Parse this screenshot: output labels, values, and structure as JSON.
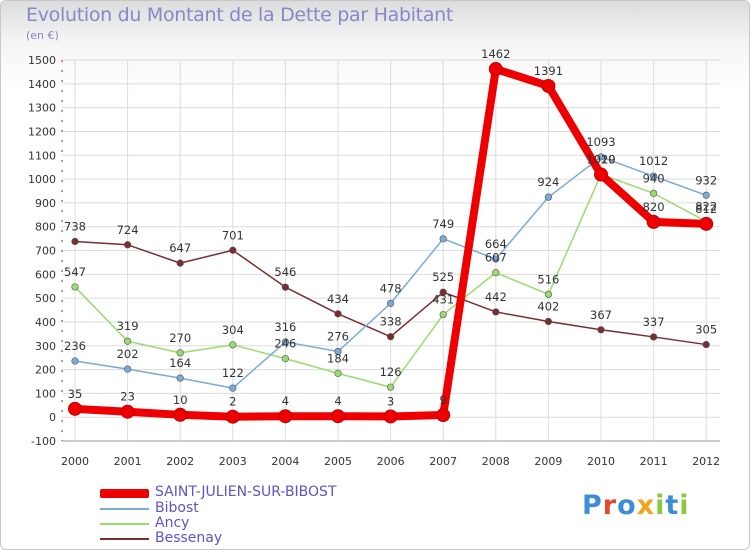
{
  "title": "Evolution du Montant de la Dette par Habitant",
  "unit_label": "(en €)",
  "logo": {
    "text": "Proxiti",
    "colors": [
      "#3a8fd8",
      "#e8452c",
      "#3a8fd8",
      "#f2a51a",
      "#8dc63f",
      "#3a8fd8",
      "#8dc63f"
    ]
  },
  "chart_data": {
    "type": "line",
    "title": "Evolution du Montant de la Dette par Habitant",
    "ylabel": "(en €)",
    "xlabel": "",
    "ylim": [
      -100,
      1500
    ],
    "yticks": [
      -100,
      0,
      100,
      200,
      300,
      400,
      500,
      600,
      700,
      800,
      900,
      1000,
      1100,
      1200,
      1300,
      1400,
      1500
    ],
    "grid": true,
    "legend_position": "bottom-left",
    "categories": [
      "2000",
      "2001",
      "2002",
      "2003",
      "2004",
      "2005",
      "2006",
      "2007",
      "2008",
      "2009",
      "2010",
      "2011",
      "2012"
    ],
    "series": [
      {
        "name": "SAINT-JULIEN-SUR-BIBOST",
        "color": "#ee0000",
        "values": [
          35,
          23,
          10,
          2,
          4,
          4,
          3,
          9,
          1462,
          1391,
          1019,
          820,
          812
        ],
        "labels": [
          "35",
          "23",
          "10",
          "2",
          "4",
          "4",
          "3",
          "9",
          "1462",
          "1391",
          "1019",
          "820",
          "812"
        ]
      },
      {
        "name": "Bibost",
        "color": "#7aaad6",
        "values": [
          236,
          202,
          164,
          122,
          316,
          276,
          478,
          749,
          664,
          924,
          1093,
          1012,
          932
        ],
        "labels": [
          "236",
          "202",
          "164",
          "122",
          "316",
          "276",
          "478",
          "749",
          "664",
          "924",
          "1093",
          "1012",
          "932"
        ]
      },
      {
        "name": "Ancy",
        "color": "#9adb6e",
        "values": [
          547,
          319,
          270,
          304,
          246,
          184,
          126,
          431,
          607,
          516,
          1020,
          940,
          822
        ],
        "labels": [
          "547",
          "319",
          "270",
          "304",
          "246",
          "184",
          "126",
          "431",
          "607",
          "516",
          "1020",
          "940",
          "822"
        ]
      },
      {
        "name": "Bessenay",
        "color": "#7a2e2e",
        "values": [
          738,
          724,
          647,
          701,
          546,
          434,
          338,
          525,
          442,
          402,
          367,
          337,
          305
        ],
        "labels": [
          "738",
          "724",
          "647",
          "701",
          "546",
          "434",
          "338",
          "525",
          "442",
          "402",
          "367",
          "337",
          "305"
        ]
      }
    ]
  }
}
